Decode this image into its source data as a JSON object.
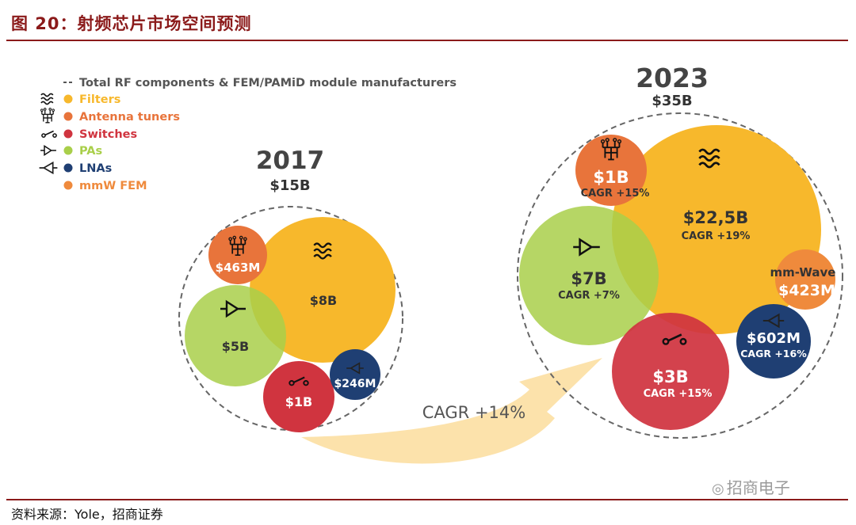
{
  "figure": {
    "title": "图 20：射频芯片市场空间预测",
    "source": "资料来源：Yole，招商证券",
    "watermark": "招商电子"
  },
  "colors": {
    "title": "#8b1a1a",
    "filters": "#f7b82c",
    "antenna_tuners": "#e8743b",
    "switches": "#d0343f",
    "pas": "#a9cf4a",
    "lnas": "#1f3f73",
    "mmw_fem": "#ef8a3c",
    "legend_text": "#555555",
    "arrow": "#fbdd9c"
  },
  "chart_data": {
    "type": "bubble",
    "title": "射频芯片市场空间预测",
    "legend": [
      {
        "key": "total",
        "label": "Total RF components & FEM/PAMiD module manufacturers",
        "icon": "dashed-line-icon"
      },
      {
        "key": "filters",
        "label": "Filters",
        "icon": "filter-wave-icon"
      },
      {
        "key": "antenna_tuners",
        "label": "Antenna tuners",
        "icon": "antenna-tuner-icon"
      },
      {
        "key": "switches",
        "label": "Switches",
        "icon": "switch-icon"
      },
      {
        "key": "pas",
        "label": "PAs",
        "icon": "amplifier-icon"
      },
      {
        "key": "lnas",
        "label": "LNAs",
        "icon": "lna-icon"
      },
      {
        "key": "mmw_fem",
        "label": "mmW FEM",
        "icon": ""
      }
    ],
    "years": [
      {
        "year": "2017",
        "total": "$15B",
        "segments": [
          {
            "key": "filters",
            "value": "$8B",
            "cagr": ""
          },
          {
            "key": "pas",
            "value": "$5B",
            "cagr": ""
          },
          {
            "key": "switches",
            "value": "$1B",
            "cagr": ""
          },
          {
            "key": "antenna_tuners",
            "value": "$463M",
            "cagr": ""
          },
          {
            "key": "lnas",
            "value": "$246M",
            "cagr": ""
          }
        ]
      },
      {
        "year": "2023",
        "total": "$35B",
        "segments": [
          {
            "key": "filters",
            "value": "$22,5B",
            "cagr": "CAGR +19%"
          },
          {
            "key": "pas",
            "value": "$7B",
            "cagr": "CAGR +7%"
          },
          {
            "key": "switches",
            "value": "$3B",
            "cagr": "CAGR +15%"
          },
          {
            "key": "antenna_tuners",
            "value": "$1B",
            "cagr": "CAGR +15%"
          },
          {
            "key": "lnas",
            "value": "$602M",
            "cagr": "CAGR +16%"
          },
          {
            "key": "mmw_fem",
            "value": "$423M",
            "cagr": "",
            "name": "mm-Wave"
          }
        ]
      }
    ],
    "overall_cagr": "CAGR +14%"
  }
}
